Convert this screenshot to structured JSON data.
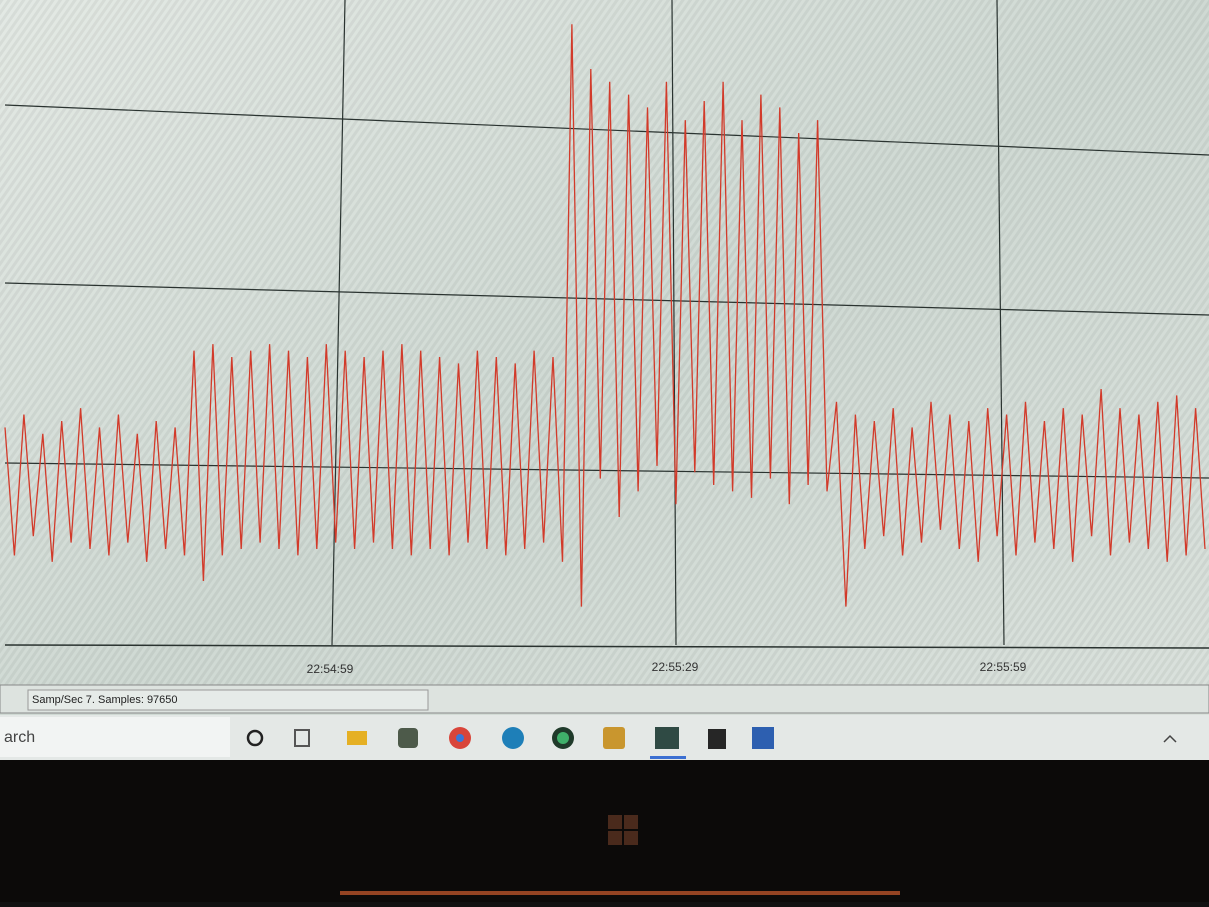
{
  "chart": {
    "type": "line",
    "color": "#d23a2a",
    "ylim": [
      0,
      100
    ],
    "x_tick_labels": [
      "22:54:59",
      "22:55:29",
      "22:55:59"
    ],
    "values": [
      34,
      14,
      36,
      17,
      33,
      13,
      35,
      16,
      37,
      15,
      34,
      14,
      36,
      16,
      33,
      13,
      35,
      15,
      34,
      14,
      46,
      10,
      47,
      14,
      45,
      15,
      46,
      16,
      47,
      15,
      46,
      14,
      45,
      15,
      47,
      16,
      46,
      15,
      45,
      16,
      46,
      15,
      47,
      14,
      46,
      15,
      45,
      14,
      44,
      16,
      46,
      15,
      45,
      14,
      44,
      15,
      46,
      16,
      45,
      13,
      97,
      6,
      90,
      26,
      88,
      20,
      86,
      24,
      84,
      28,
      88,
      22,
      82,
      27,
      85,
      25,
      88,
      24,
      82,
      23,
      86,
      26,
      84,
      22,
      80,
      25,
      82,
      24,
      38,
      6,
      36,
      15,
      35,
      17,
      37,
      14,
      34,
      16,
      38,
      18,
      36,
      15,
      35,
      13,
      37,
      17,
      36,
      14,
      38,
      16,
      35,
      15,
      37,
      13,
      36,
      17,
      40,
      14,
      37,
      16,
      36,
      15,
      38,
      13,
      39,
      14,
      37,
      15
    ]
  },
  "status_bar": {
    "text": "Samp/Sec 7.  Samples: 97650"
  },
  "taskbar": {
    "search": "arch"
  }
}
